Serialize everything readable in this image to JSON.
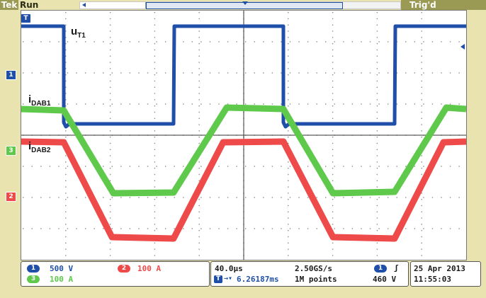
{
  "header": {
    "brand": "Tek",
    "run_state": "Run",
    "trigger_state": "Trig'd"
  },
  "channels": [
    {
      "id": "1",
      "color": "#1f4fa8",
      "scale": "500 V"
    },
    {
      "id": "2",
      "color": "#ef4a4a",
      "scale": "100 A"
    },
    {
      "id": "3",
      "color": "#5ec94a",
      "scale": "100 A"
    }
  ],
  "markers": {
    "ch1": "1",
    "ch2": "2",
    "ch3": "3",
    "T": "T"
  },
  "traces": {
    "u_T1": {
      "main": "u",
      "sub": "T1"
    },
    "i_DAB1": {
      "main": "i",
      "sub": "DAB1"
    },
    "i_DAB2": {
      "main": "i",
      "sub": "DAB2"
    }
  },
  "timebase": {
    "scale": "40.0µs",
    "position": "6.26187ms",
    "sample_rate": "2.50GS/s",
    "record_length": "1M points"
  },
  "trigger": {
    "source": "1",
    "slope": "ʃ",
    "level": "460 V"
  },
  "datetime": {
    "date": "25 Apr 2013",
    "time": "11:55:03"
  }
}
